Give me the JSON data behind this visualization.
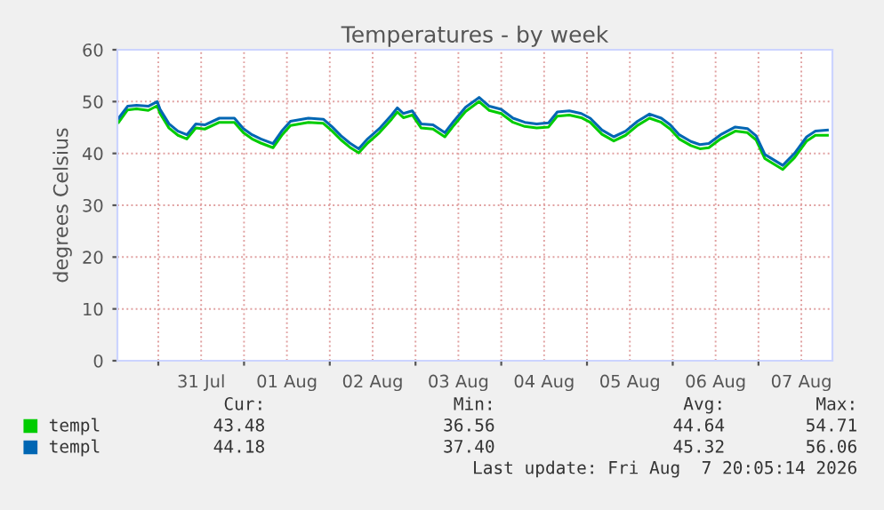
{
  "chart_data": {
    "type": "line",
    "title": "Temperatures - by week",
    "ylabel": "degrees Celsius",
    "x": [
      "2026-07-30T12:54",
      "2026-07-30T15:24",
      "2026-07-30T17:54",
      "2026-07-30T21:12",
      "2026-07-30T23:42",
      "2026-07-31T00:30",
      "2026-07-31T03:00",
      "2026-07-31T05:30",
      "2026-07-31T08:00",
      "2026-07-31T10:30",
      "2026-07-31T13:00",
      "2026-07-31T17:06",
      "2026-07-31T21:18",
      "2026-07-31T23:48",
      "2026-08-01T02:15",
      "2026-08-01T04:42",
      "2026-08-01T08:06",
      "2026-08-01T10:33",
      "2026-08-01T13:00",
      "2026-08-01T18:00",
      "2026-08-01T22:12",
      "2026-08-02T00:42",
      "2026-08-02T03:09",
      "2026-08-02T05:36",
      "2026-08-02T08:06",
      "2026-08-02T10:36",
      "2026-08-02T13:54",
      "2026-08-02T17:18",
      "2026-08-02T18:54",
      "2026-08-02T20:36",
      "2026-08-02T23:06",
      "2026-08-03T01:36",
      "2026-08-03T04:54",
      "2026-08-03T08:12",
      "2026-08-03T10:42",
      "2026-08-03T14:00",
      "2026-08-03T17:48",
      "2026-08-03T20:39",
      "2026-08-03T23:58",
      "2026-08-04T03:18",
      "2026-08-04T06:36",
      "2026-08-04T09:54",
      "2026-08-04T13:15",
      "2026-08-04T15:42",
      "2026-08-04T19:04",
      "2026-08-04T22:24",
      "2026-08-05T00:54",
      "2026-08-05T04:12",
      "2026-08-05T07:30",
      "2026-08-05T10:48",
      "2026-08-05T14:09",
      "2026-08-05T17:30",
      "2026-08-05T20:48",
      "2026-08-05T23:18",
      "2026-08-06T01:48",
      "2026-08-06T05:06",
      "2026-08-06T07:36",
      "2026-08-06T10:06",
      "2026-08-06T13:24",
      "2026-08-06T17:30",
      "2026-08-06T20:54",
      "2026-08-06T23:21",
      "2026-08-07T01:48",
      "2026-08-07T06:48",
      "2026-08-07T10:06",
      "2026-08-07T13:30",
      "2026-08-07T15:57",
      "2026-08-07T19:18"
    ],
    "series": [
      {
        "name": "templ",
        "color": "#00cc00",
        "values": [
          46.0,
          48.4,
          48.6,
          48.3,
          49.2,
          47.7,
          44.9,
          43.5,
          42.8,
          44.9,
          44.7,
          46.0,
          46.0,
          44.0,
          42.8,
          42.0,
          41.1,
          43.5,
          45.4,
          46.0,
          45.8,
          44.3,
          42.6,
          41.2,
          40.1,
          42.0,
          44.0,
          46.6,
          48.0,
          46.9,
          47.4,
          44.9,
          44.7,
          43.2,
          45.4,
          48.1,
          50.0,
          48.3,
          47.7,
          46.0,
          45.2,
          44.9,
          45.1,
          47.2,
          47.4,
          46.9,
          46.0,
          43.7,
          42.4,
          43.5,
          45.4,
          46.8,
          46.0,
          44.7,
          42.8,
          41.5,
          40.9,
          41.1,
          42.8,
          44.3,
          44.0,
          42.6,
          39.0,
          36.9,
          39.2,
          42.4,
          43.5,
          43.5
        ]
      },
      {
        "name": "templ",
        "color": "#0066b3",
        "values": [
          46.8,
          49.1,
          49.3,
          49.1,
          50.0,
          48.5,
          45.7,
          44.3,
          43.6,
          45.7,
          45.5,
          46.8,
          46.8,
          44.8,
          43.6,
          42.8,
          41.9,
          44.3,
          46.2,
          46.8,
          46.6,
          45.1,
          43.4,
          42.0,
          40.9,
          42.8,
          44.8,
          47.4,
          48.8,
          47.7,
          48.2,
          45.7,
          45.5,
          44.0,
          46.2,
          48.9,
          50.8,
          49.1,
          48.5,
          46.8,
          46.0,
          45.7,
          45.9,
          48.0,
          48.2,
          47.7,
          46.8,
          44.5,
          43.2,
          44.3,
          46.2,
          47.6,
          46.8,
          45.5,
          43.6,
          42.3,
          41.7,
          41.9,
          43.6,
          45.1,
          44.8,
          43.4,
          39.8,
          37.7,
          40.0,
          43.2,
          44.3,
          44.5
        ]
      }
    ],
    "xlim": [
      "2026-07-30T12:33",
      "2026-08-07T20:42"
    ],
    "xticks": [
      {
        "value": "2026-07-31T00:00",
        "label": null
      },
      {
        "value": "2026-08-01T00:00",
        "label": null
      },
      {
        "value": "2026-08-02T00:00",
        "label": null
      },
      {
        "value": "2026-08-03T00:00",
        "label": null
      },
      {
        "value": "2026-08-04T00:00",
        "label": null
      },
      {
        "value": "2026-08-05T00:00",
        "label": null
      },
      {
        "value": "2026-08-06T00:00",
        "label": null
      },
      {
        "value": "2026-08-07T00:00",
        "label": null
      },
      {
        "value": "2026-07-31T12:00",
        "label": "31 Jul"
      },
      {
        "value": "2026-08-01T12:00",
        "label": "01 Aug"
      },
      {
        "value": "2026-08-02T12:00",
        "label": "02 Aug"
      },
      {
        "value": "2026-08-03T12:00",
        "label": "03 Aug"
      },
      {
        "value": "2026-08-04T12:00",
        "label": "04 Aug"
      },
      {
        "value": "2026-08-05T12:00",
        "label": "05 Aug"
      },
      {
        "value": "2026-08-06T12:00",
        "label": "06 Aug"
      },
      {
        "value": "2026-08-07T12:00",
        "label": "07 Aug"
      }
    ],
    "ylim": [
      0,
      60
    ],
    "yticks": [
      0,
      10,
      20,
      30,
      40,
      50,
      60
    ],
    "grid": true,
    "legend": "bottom",
    "line_style": "solid",
    "annotations": [
      "Cur:",
      "Min:",
      "Avg:",
      "Max:",
      "43.48",
      "36.56",
      "44.64",
      "54.71",
      "44.18",
      "37.40",
      "45.32",
      "56.06",
      "Last update: Fri Aug  7 20:05:14 2026"
    ]
  }
}
